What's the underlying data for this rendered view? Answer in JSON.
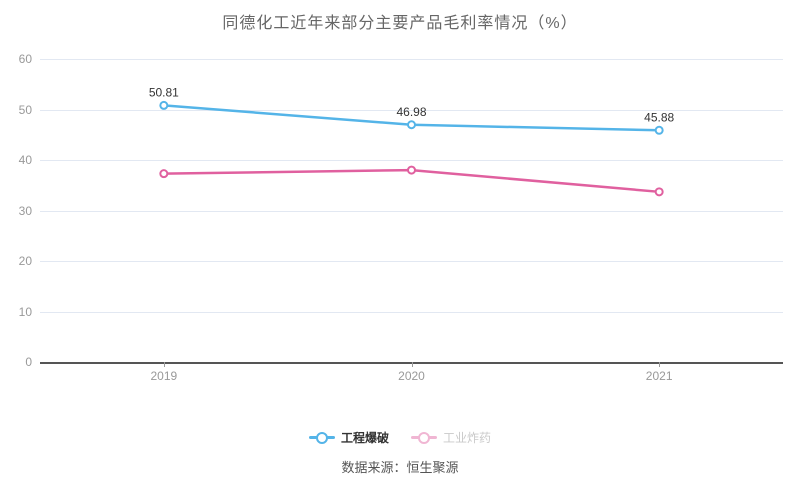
{
  "title": "同德化工近年来部分主要产品毛利率情况（%）",
  "source_text": "数据来源：恒生聚源",
  "colors": {
    "blue_series": "#54b4e8",
    "pink_series": "#e0609f",
    "gridline": "#e2e8f2",
    "axis_line": "#555555",
    "tick_label": "#999999",
    "title_text": "#666666",
    "data_label": "#333333",
    "legend_active_text": "#333333",
    "legend_dim_text": "#c9c9c9",
    "source_text_color": "#555555"
  },
  "chart_data": {
    "type": "line",
    "title": "同德化工近年来部分主要产品毛利率情况（%）",
    "categories": [
      "2019",
      "2020",
      "2021"
    ],
    "series": [
      {
        "name": "工程爆破",
        "color": "#54b4e8",
        "values": [
          50.81,
          46.98,
          45.88
        ],
        "point_labels": [
          "50.81",
          "46.98",
          "45.88"
        ],
        "legend_dimmed": false
      },
      {
        "name": "工业炸药",
        "color": "#e0609f",
        "values": [
          37.3,
          38.0,
          33.7
        ],
        "point_labels": [],
        "legend_dimmed": true
      }
    ],
    "xlabel": "",
    "ylabel": "",
    "ylim": [
      0,
      60
    ],
    "yticks": [
      0,
      10,
      20,
      30,
      40,
      50,
      60
    ],
    "grid": true,
    "legend_position": "bottom",
    "marker_style": "hollow-circle"
  }
}
